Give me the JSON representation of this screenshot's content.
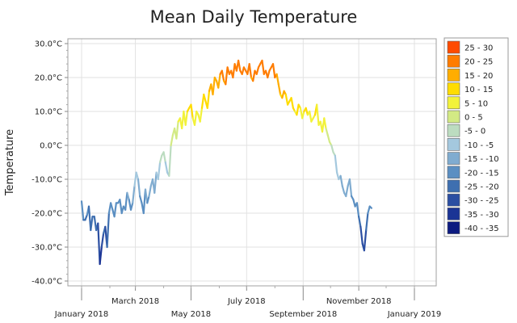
{
  "chart_data": {
    "type": "line",
    "title": "Mean Daily Temperature",
    "xlabel": "",
    "ylabel": "Temperature",
    "ylim": [
      -40,
      30
    ],
    "yticks": [
      {
        "value": 30,
        "label": "30.0°C"
      },
      {
        "value": 20,
        "label": "20.0°C"
      },
      {
        "value": 10,
        "label": "10.0°C"
      },
      {
        "value": 0,
        "label": "0.0°C"
      },
      {
        "value": -10,
        "label": "-10.0°C"
      },
      {
        "value": -20,
        "label": "-20.0°C"
      },
      {
        "value": -30,
        "label": "-30.0°C"
      },
      {
        "value": -40,
        "label": "-40.0°C"
      }
    ],
    "xlim": [
      "2018-01-01",
      "2019-01-01"
    ],
    "xticks": [
      {
        "date": "2018-01-01",
        "label": "January 2018",
        "row": 2
      },
      {
        "date": "2018-03-01",
        "label": "March 2018",
        "row": 1
      },
      {
        "date": "2018-05-01",
        "label": "May 2018",
        "row": 2
      },
      {
        "date": "2018-07-01",
        "label": "July 2018",
        "row": 1
      },
      {
        "date": "2018-09-01",
        "label": "September 2018",
        "row": 2
      },
      {
        "date": "2018-11-01",
        "label": "November 2018",
        "row": 1
      },
      {
        "date": "2019-01-01",
        "label": "January 2019",
        "row": 2
      }
    ],
    "series": [
      {
        "name": "Mean Daily Temperature",
        "x_start": "2018-01-01",
        "x_step_days": 2,
        "values": [
          -16.5,
          -22,
          -22,
          -20.5,
          -18,
          -25,
          -21,
          -21,
          -25,
          -23,
          -35,
          -30,
          -26,
          -24,
          -30,
          -20,
          -17,
          -19,
          -21,
          -17,
          -17,
          -16,
          -20,
          -18,
          -19,
          -14,
          -16,
          -19,
          -17,
          -12,
          -8,
          -10,
          -15,
          -17,
          -20,
          -13,
          -17,
          -15,
          -12,
          -10,
          -14,
          -8,
          -10,
          -5,
          -3,
          -2,
          -5,
          -8,
          -9,
          0,
          3,
          5,
          2,
          7,
          8,
          5,
          10,
          6,
          10,
          11,
          12,
          8,
          6,
          10,
          9,
          7,
          11,
          15,
          13,
          11,
          16,
          18,
          15,
          20,
          19,
          17,
          21,
          22,
          19,
          18,
          23,
          21,
          22,
          20,
          24,
          22,
          25,
          22,
          21,
          23,
          22,
          21,
          24,
          20,
          19,
          22,
          21,
          23,
          24,
          25,
          21,
          22,
          20,
          22,
          23,
          24,
          20,
          21,
          18,
          15,
          14,
          16,
          15,
          12,
          13,
          14,
          11,
          10,
          9,
          12,
          11,
          8,
          10,
          11,
          9,
          10,
          7,
          8,
          9,
          12,
          6,
          7,
          4,
          8,
          5,
          3,
          1,
          0,
          -2,
          -3,
          -8,
          -10,
          -9,
          -12,
          -14,
          -15,
          -12,
          -10,
          -15,
          -16,
          -18,
          -17,
          -21,
          -24,
          -29,
          -31,
          -25,
          -20,
          -18,
          -18.5
        ]
      }
    ],
    "legend": {
      "position": "right",
      "entries": [
        {
          "label": "25 - 30",
          "color": "#ff4a00"
        },
        {
          "label": "20 - 25",
          "color": "#ff7c00"
        },
        {
          "label": "15 - 20",
          "color": "#ffad00"
        },
        {
          "label": "10 - 15",
          "color": "#ffdc00"
        },
        {
          "label": "5 - 10",
          "color": "#f2f23a"
        },
        {
          "label": "0 - 5",
          "color": "#d3ea84"
        },
        {
          "label": "-5 - 0",
          "color": "#bcdcc0"
        },
        {
          "label": "-10 - -5",
          "color": "#a4c8de"
        },
        {
          "label": "-15 - -10",
          "color": "#80acd0"
        },
        {
          "label": "-20 - -15",
          "color": "#5b8fc2"
        },
        {
          "label": "-25 - -20",
          "color": "#3e6fb0"
        },
        {
          "label": "-30 - -25",
          "color": "#2b4ea2"
        },
        {
          "label": "-35 - -30",
          "color": "#1b3495"
        },
        {
          "label": "-40 - -35",
          "color": "#0c1a80"
        }
      ]
    },
    "grid": true
  }
}
